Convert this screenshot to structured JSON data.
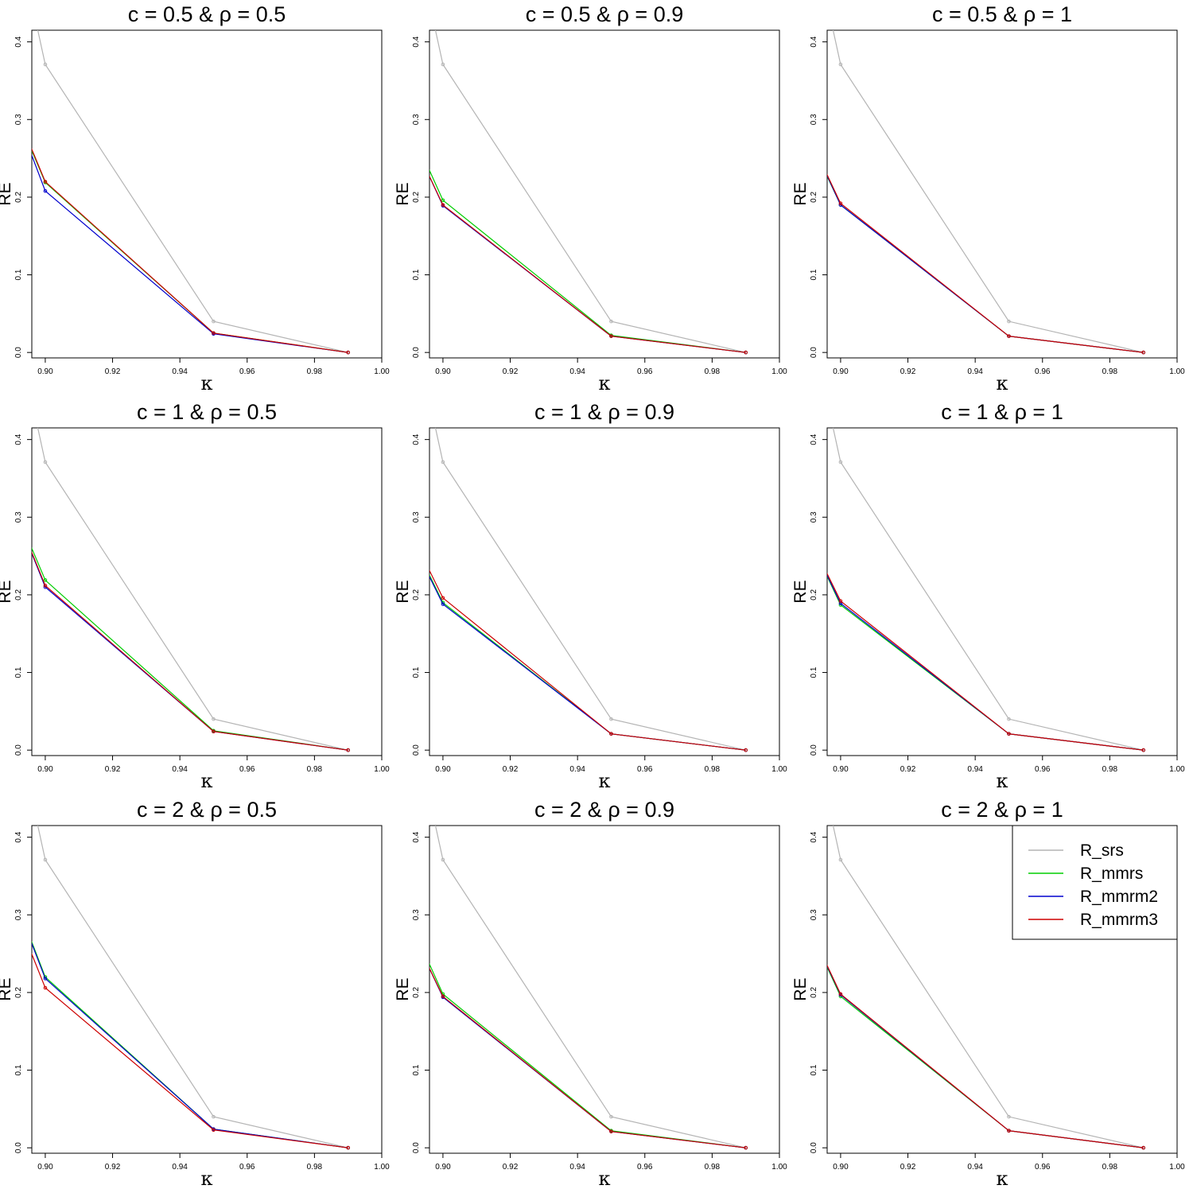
{
  "figure": {
    "legend_position": "top-right of last panel",
    "legend_entries": [
      {
        "label": "R_srs",
        "color": "#b4b4b4"
      },
      {
        "label": "R_mmrs",
        "color": "#00cd00"
      },
      {
        "label": "R_mmrm2",
        "color": "#0000cd"
      },
      {
        "label": "R_mmrm3",
        "color": "#cd0000"
      }
    ]
  },
  "chart_data": [
    {
      "type": "line",
      "title": "c = 0.5 & ρ = 0.5",
      "xlabel": "κ",
      "ylabel": "RE",
      "xlim": [
        0.896,
        1.0
      ],
      "ylim": [
        -0.007,
        0.415
      ],
      "grid": false,
      "x": [
        0.895,
        0.9,
        0.95,
        0.99
      ],
      "xticks": [
        "0.90",
        "0.92",
        "0.94",
        "0.96",
        "0.98",
        "1.00"
      ],
      "yticks": [
        "0.0",
        "0.1",
        "0.2",
        "0.3",
        "0.4"
      ],
      "series": [
        {
          "name": "R_srs",
          "color": "#b4b4b4",
          "values": [
            0.47,
            0.371,
            0.04,
            0.0
          ]
        },
        {
          "name": "R_mmrs",
          "color": "#00cd00",
          "values": [
            0.27,
            0.219,
            0.025,
            0.0
          ]
        },
        {
          "name": "R_mmrm2",
          "color": "#0000cd",
          "values": [
            0.265,
            0.208,
            0.024,
            0.0
          ]
        },
        {
          "name": "R_mmrm3",
          "color": "#cd0000",
          "values": [
            0.272,
            0.22,
            0.025,
            0.0
          ]
        }
      ]
    },
    {
      "type": "line",
      "title": "c = 0.5 & ρ = 0.9",
      "xlabel": "κ",
      "ylabel": "RE",
      "xlim": [
        0.896,
        1.0
      ],
      "ylim": [
        -0.007,
        0.415
      ],
      "grid": false,
      "x": [
        0.895,
        0.9,
        0.95,
        0.99
      ],
      "xticks": [
        "0.90",
        "0.92",
        "0.94",
        "0.96",
        "0.98",
        "1.00"
      ],
      "yticks": [
        "0.0",
        "0.1",
        "0.2",
        "0.3",
        "0.4"
      ],
      "series": [
        {
          "name": "R_srs",
          "color": "#b4b4b4",
          "values": [
            0.47,
            0.371,
            0.04,
            0.0
          ]
        },
        {
          "name": "R_mmrs",
          "color": "#00cd00",
          "values": [
            0.244,
            0.196,
            0.022,
            0.0
          ]
        },
        {
          "name": "R_mmrm2",
          "color": "#0000cd",
          "values": [
            0.236,
            0.189,
            0.021,
            0.0
          ]
        },
        {
          "name": "R_mmrm3",
          "color": "#cd0000",
          "values": [
            0.236,
            0.19,
            0.021,
            0.0
          ]
        }
      ]
    },
    {
      "type": "line",
      "title": "c = 0.5 & ρ = 1",
      "xlabel": "κ",
      "ylabel": "RE",
      "xlim": [
        0.896,
        1.0
      ],
      "ylim": [
        -0.007,
        0.415
      ],
      "grid": false,
      "x": [
        0.895,
        0.9,
        0.95,
        0.99
      ],
      "xticks": [
        "0.90",
        "0.92",
        "0.94",
        "0.96",
        "0.98",
        "1.00"
      ],
      "yticks": [
        "0.0",
        "0.1",
        "0.2",
        "0.3",
        "0.4"
      ],
      "series": [
        {
          "name": "R_srs",
          "color": "#b4b4b4",
          "values": [
            0.47,
            0.371,
            0.04,
            0.0
          ]
        },
        {
          "name": "R_mmrs",
          "color": "#00cd00",
          "values": [
            0.236,
            0.19,
            0.021,
            0.0
          ]
        },
        {
          "name": "R_mmrm2",
          "color": "#0000cd",
          "values": [
            0.237,
            0.19,
            0.021,
            0.0
          ]
        },
        {
          "name": "R_mmrm3",
          "color": "#cd0000",
          "values": [
            0.238,
            0.192,
            0.021,
            0.0
          ]
        }
      ]
    },
    {
      "type": "line",
      "title": "c = 1 & ρ = 0.5",
      "xlabel": "κ",
      "ylabel": "RE",
      "xlim": [
        0.896,
        1.0
      ],
      "ylim": [
        -0.007,
        0.415
      ],
      "grid": false,
      "x": [
        0.895,
        0.9,
        0.95,
        0.99
      ],
      "xticks": [
        "0.90",
        "0.92",
        "0.94",
        "0.96",
        "0.98",
        "1.00"
      ],
      "yticks": [
        "0.0",
        "0.1",
        "0.2",
        "0.3",
        "0.4"
      ],
      "series": [
        {
          "name": "R_srs",
          "color": "#b4b4b4",
          "values": [
            0.47,
            0.371,
            0.04,
            0.0
          ]
        },
        {
          "name": "R_mmrs",
          "color": "#00cd00",
          "values": [
            0.27,
            0.219,
            0.025,
            0.0
          ]
        },
        {
          "name": "R_mmrm2",
          "color": "#0000cd",
          "values": [
            0.264,
            0.21,
            0.024,
            0.0
          ]
        },
        {
          "name": "R_mmrm3",
          "color": "#cd0000",
          "values": [
            0.265,
            0.212,
            0.024,
            0.0
          ]
        }
      ]
    },
    {
      "type": "line",
      "title": "c = 1 & ρ = 0.9",
      "xlabel": "κ",
      "ylabel": "RE",
      "xlim": [
        0.896,
        1.0
      ],
      "ylim": [
        -0.007,
        0.415
      ],
      "grid": false,
      "x": [
        0.895,
        0.9,
        0.95,
        0.99
      ],
      "xticks": [
        "0.90",
        "0.92",
        "0.94",
        "0.96",
        "0.98",
        "1.00"
      ],
      "yticks": [
        "0.0",
        "0.1",
        "0.2",
        "0.3",
        "0.4"
      ],
      "series": [
        {
          "name": "R_srs",
          "color": "#b4b4b4",
          "values": [
            0.47,
            0.371,
            0.04,
            0.0
          ]
        },
        {
          "name": "R_mmrs",
          "color": "#00cd00",
          "values": [
            0.234,
            0.19,
            0.021,
            0.0
          ]
        },
        {
          "name": "R_mmrm2",
          "color": "#0000cd",
          "values": [
            0.232,
            0.188,
            0.021,
            0.0
          ]
        },
        {
          "name": "R_mmrm3",
          "color": "#cd0000",
          "values": [
            0.24,
            0.196,
            0.021,
            0.0
          ]
        }
      ]
    },
    {
      "type": "line",
      "title": "c = 1 & ρ = 1",
      "xlabel": "κ",
      "ylabel": "RE",
      "xlim": [
        0.896,
        1.0
      ],
      "ylim": [
        -0.007,
        0.415
      ],
      "grid": false,
      "x": [
        0.895,
        0.9,
        0.95,
        0.99
      ],
      "xticks": [
        "0.90",
        "0.92",
        "0.94",
        "0.96",
        "0.98",
        "1.00"
      ],
      "yticks": [
        "0.0",
        "0.1",
        "0.2",
        "0.3",
        "0.4"
      ],
      "series": [
        {
          "name": "R_srs",
          "color": "#b4b4b4",
          "values": [
            0.47,
            0.371,
            0.04,
            0.0
          ]
        },
        {
          "name": "R_mmrs",
          "color": "#00cd00",
          "values": [
            0.233,
            0.187,
            0.021,
            0.0
          ]
        },
        {
          "name": "R_mmrm2",
          "color": "#0000cd",
          "values": [
            0.234,
            0.189,
            0.021,
            0.0
          ]
        },
        {
          "name": "R_mmrm3",
          "color": "#cd0000",
          "values": [
            0.236,
            0.192,
            0.021,
            0.0
          ]
        }
      ]
    },
    {
      "type": "line",
      "title": "c = 2 & ρ = 0.5",
      "xlabel": "κ",
      "ylabel": "RE",
      "xlim": [
        0.896,
        1.0
      ],
      "ylim": [
        -0.007,
        0.415
      ],
      "grid": false,
      "x": [
        0.895,
        0.9,
        0.95,
        0.99
      ],
      "xticks": [
        "0.90",
        "0.92",
        "0.94",
        "0.96",
        "0.98",
        "1.00"
      ],
      "yticks": [
        "0.0",
        "0.1",
        "0.2",
        "0.3",
        "0.4"
      ],
      "series": [
        {
          "name": "R_srs",
          "color": "#b4b4b4",
          "values": [
            0.47,
            0.371,
            0.04,
            0.0
          ]
        },
        {
          "name": "R_mmrs",
          "color": "#00cd00",
          "values": [
            0.276,
            0.22,
            0.024,
            0.0
          ]
        },
        {
          "name": "R_mmrm2",
          "color": "#0000cd",
          "values": [
            0.274,
            0.218,
            0.024,
            0.0
          ]
        },
        {
          "name": "R_mmrm3",
          "color": "#cd0000",
          "values": [
            0.26,
            0.206,
            0.023,
            0.0
          ]
        }
      ]
    },
    {
      "type": "line",
      "title": "c = 2 & ρ = 0.9",
      "xlabel": "κ",
      "ylabel": "RE",
      "xlim": [
        0.896,
        1.0
      ],
      "ylim": [
        -0.007,
        0.415
      ],
      "grid": false,
      "x": [
        0.895,
        0.9,
        0.95,
        0.99
      ],
      "xticks": [
        "0.90",
        "0.92",
        "0.94",
        "0.96",
        "0.98",
        "1.00"
      ],
      "yticks": [
        "0.0",
        "0.1",
        "0.2",
        "0.3",
        "0.4"
      ],
      "series": [
        {
          "name": "R_srs",
          "color": "#b4b4b4",
          "values": [
            0.47,
            0.371,
            0.04,
            0.0
          ]
        },
        {
          "name": "R_mmrs",
          "color": "#00cd00",
          "values": [
            0.246,
            0.198,
            0.022,
            0.0
          ]
        },
        {
          "name": "R_mmrm2",
          "color": "#0000cd",
          "values": [
            0.24,
            0.194,
            0.021,
            0.0
          ]
        },
        {
          "name": "R_mmrm3",
          "color": "#cd0000",
          "values": [
            0.24,
            0.195,
            0.021,
            0.0
          ]
        }
      ]
    },
    {
      "type": "line",
      "title": "c = 2 & ρ = 1",
      "xlabel": "κ",
      "ylabel": "RE",
      "xlim": [
        0.896,
        1.0
      ],
      "ylim": [
        -0.007,
        0.415
      ],
      "grid": false,
      "x": [
        0.895,
        0.9,
        0.95,
        0.99
      ],
      "xticks": [
        "0.90",
        "0.92",
        "0.94",
        "0.96",
        "0.98",
        "1.00"
      ],
      "yticks": [
        "0.0",
        "0.1",
        "0.2",
        "0.3",
        "0.4"
      ],
      "series": [
        {
          "name": "R_srs",
          "color": "#b4b4b4",
          "values": [
            0.47,
            0.371,
            0.04,
            0.0
          ]
        },
        {
          "name": "R_mmrs",
          "color": "#00cd00",
          "values": [
            0.242,
            0.195,
            0.022,
            0.0
          ]
        },
        {
          "name": "R_mmrm2",
          "color": "#0000cd",
          "values": [
            0.243,
            0.197,
            0.022,
            0.0
          ]
        },
        {
          "name": "R_mmrm3",
          "color": "#cd0000",
          "values": [
            0.244,
            0.198,
            0.022,
            0.0
          ]
        }
      ]
    }
  ]
}
